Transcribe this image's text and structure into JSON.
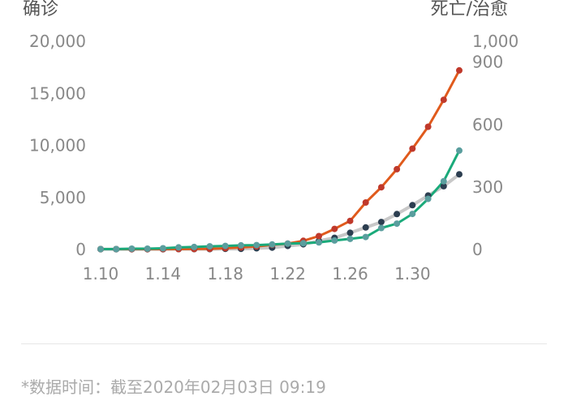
{
  "chart_data": {
    "type": "line",
    "left_axis_title": "确诊",
    "right_axis_title": "死亡/治愈",
    "left_ticks": [
      "0",
      "5,000",
      "10,000",
      "15,000",
      "20,000"
    ],
    "left_tick_values": [
      0,
      5000,
      10000,
      15000,
      20000
    ],
    "right_ticks": [
      "0",
      "300",
      "600",
      "900",
      "1,000"
    ],
    "right_tick_values": [
      0,
      300,
      600,
      900,
      1000
    ],
    "left_ylim": [
      0,
      20000
    ],
    "right_ylim": [
      0,
      1000
    ],
    "x": [
      "1.10",
      "1.11",
      "1.12",
      "1.13",
      "1.14",
      "1.15",
      "1.16",
      "1.17",
      "1.18",
      "1.19",
      "1.20",
      "1.21",
      "1.22",
      "1.23",
      "1.24",
      "1.25",
      "1.26",
      "1.27",
      "1.28",
      "1.29",
      "1.30",
      "1.31",
      "2.01",
      "2.02"
    ],
    "x_tick_labels": [
      "1.10",
      "1.14",
      "1.18",
      "1.22",
      "1.26",
      "1.30"
    ],
    "x_tick_positions": [
      "1.10",
      "1.14",
      "1.18",
      "1.22",
      "1.26",
      "1.30"
    ],
    "grid": false,
    "series": [
      {
        "axis": "left",
        "color": "#e05a1c",
        "marker_color": "#c0392b",
        "values": [
          41,
          41,
          41,
          41,
          41,
          41,
          45,
          62,
          121,
          198,
          291,
          440,
          571,
          830,
          1287,
          1975,
          2744,
          4515,
          5974,
          7711,
          9692,
          11791,
          14380,
          17205
        ]
      },
      {
        "axis": "right",
        "color": "#c8c8c8",
        "marker_color": "#2c3e50",
        "values": [
          1,
          1,
          1,
          1,
          1,
          2,
          2,
          2,
          3,
          3,
          6,
          9,
          17,
          25,
          41,
          56,
          80,
          106,
          132,
          170,
          213,
          259,
          304,
          361
        ]
      },
      {
        "axis": "right",
        "color": "#1aaa7a",
        "marker_color": "#5a9e9e",
        "values": [
          2,
          2,
          4,
          4,
          6,
          10,
          12,
          15,
          17,
          20,
          21,
          24,
          28,
          30,
          34,
          43,
          51,
          60,
          103,
          124,
          171,
          243,
          328,
          475
        ]
      }
    ]
  },
  "footnote": "*数据时间：截至2020年02月03日 09:19"
}
